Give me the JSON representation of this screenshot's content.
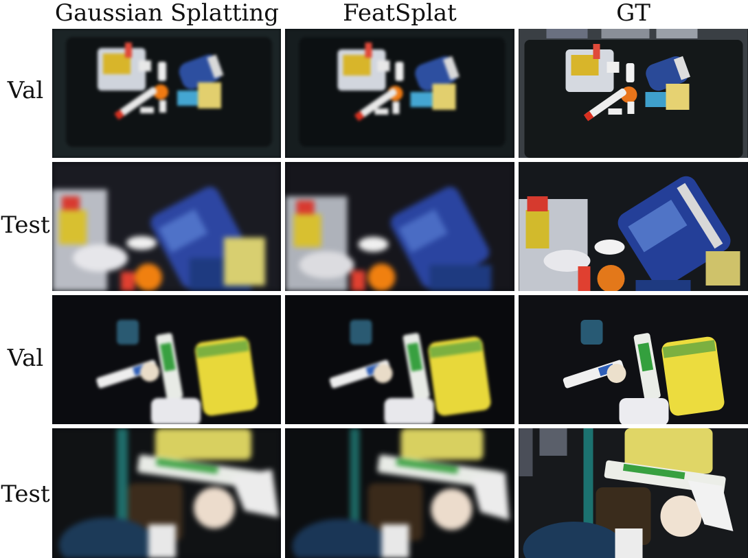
{
  "columns": [
    "Gaussian Splatting",
    "FeatSplat",
    "GT"
  ],
  "rows": [
    "Val",
    "Test",
    "Val",
    "Test"
  ]
}
